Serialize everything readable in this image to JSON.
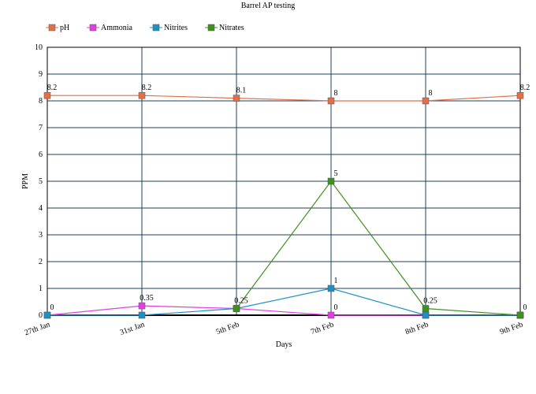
{
  "chart_data": {
    "type": "line",
    "title": "Barrel AP testing",
    "x_label": "Days",
    "y_label": "PPM",
    "categories": [
      "27th Jan",
      "31st Jan",
      "5th Feb",
      "7th Feb",
      "8th Feb",
      "9th Feb"
    ],
    "ylim": [
      0,
      10
    ],
    "yticks": [
      0,
      1,
      2,
      3,
      4,
      5,
      6,
      7,
      8,
      9,
      10
    ],
    "grid": true,
    "legend": "top",
    "series": [
      {
        "name": "pH",
        "color": "#e0704a",
        "values": [
          8.2,
          8.2,
          8.1,
          8,
          8,
          8.2
        ],
        "value_labels": [
          "8.2",
          "8.2",
          "8.1",
          "8",
          "8",
          "8.2"
        ]
      },
      {
        "name": "Ammonia",
        "color": "#e040e0",
        "values": [
          0,
          0.35,
          0.25,
          0,
          0,
          0
        ],
        "value_labels": [
          "0",
          "0.35",
          "0.25",
          "0",
          null,
          "0"
        ]
      },
      {
        "name": "Nitrites",
        "color": "#2090c0",
        "values": [
          0,
          0,
          0.25,
          1,
          0,
          0
        ],
        "value_labels": [
          null,
          null,
          null,
          "1",
          null,
          null
        ]
      },
      {
        "name": "Nitrates",
        "color": "#409020",
        "values": [
          null,
          null,
          0.25,
          5,
          0.25,
          0
        ],
        "value_labels": [
          null,
          null,
          null,
          "5",
          "0.25",
          null
        ]
      }
    ]
  }
}
